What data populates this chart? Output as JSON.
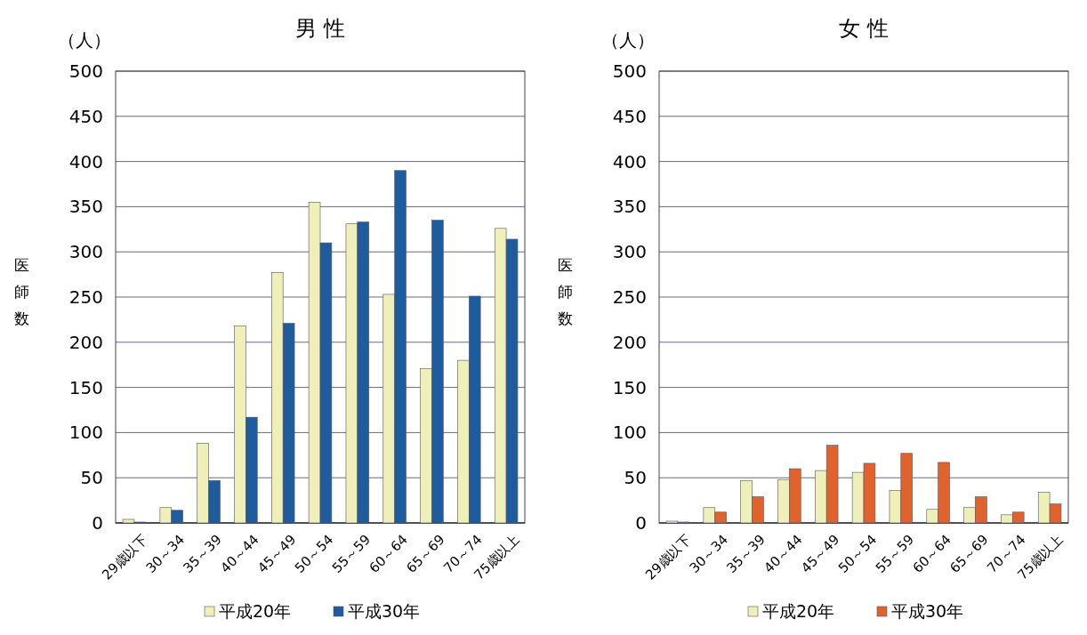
{
  "chart_data": [
    {
      "type": "bar",
      "title": "男 性",
      "ylabel": "医師数",
      "annotations": [
        "（人）"
      ],
      "categories": [
        "29歳以下",
        "30～34",
        "35～39",
        "40～44",
        "45～49",
        "50～54",
        "55～59",
        "60～64",
        "65～69",
        "70～74",
        "75歳以上"
      ],
      "series": [
        {
          "name": "平成20年",
          "color": "#eef0b8",
          "values": [
            4,
            17,
            88,
            218,
            277,
            355,
            331,
            253,
            171,
            180,
            326
          ]
        },
        {
          "name": "平成30年",
          "color": "#1f5c9e",
          "values": [
            1,
            14,
            47,
            117,
            221,
            310,
            333,
            390,
            335,
            251,
            314
          ]
        }
      ],
      "ylim": [
        0,
        500
      ],
      "yticks": [
        0,
        50,
        100,
        150,
        200,
        250,
        300,
        350,
        400,
        450,
        500
      ],
      "grid": "y",
      "legend": "bottom"
    },
    {
      "type": "bar",
      "title": "女 性",
      "ylabel": "医師数",
      "annotations": [
        "（人）"
      ],
      "categories": [
        "29歳以下",
        "30～34",
        "35～39",
        "40～44",
        "45～49",
        "50～54",
        "55～59",
        "60～64",
        "65～69",
        "70～74",
        "75歳以上"
      ],
      "series": [
        {
          "name": "平成20年",
          "color": "#eef0b8",
          "values": [
            2,
            17,
            47,
            48,
            58,
            56,
            36,
            15,
            17,
            9,
            34
          ]
        },
        {
          "name": "平成30年",
          "color": "#e0622c",
          "values": [
            1,
            12,
            29,
            60,
            86,
            66,
            77,
            67,
            29,
            12,
            21
          ]
        }
      ],
      "ylim": [
        0,
        500
      ],
      "yticks": [
        0,
        50,
        100,
        150,
        200,
        250,
        300,
        350,
        400,
        450,
        500
      ],
      "grid": "y",
      "legend": "bottom"
    }
  ]
}
